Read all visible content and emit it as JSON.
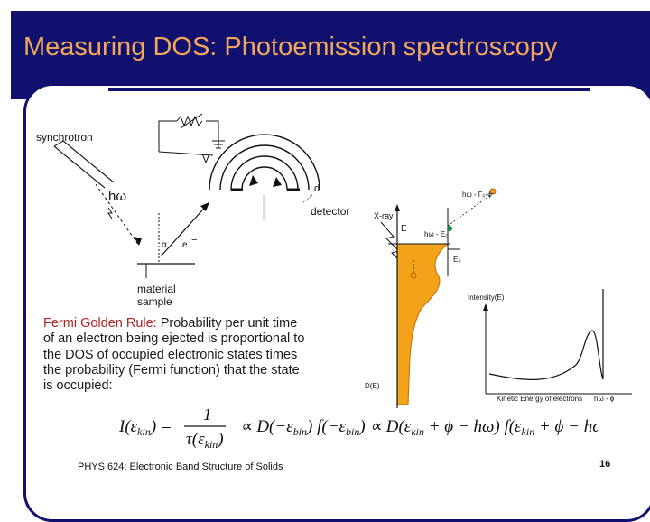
{
  "slide": {
    "title": "Measuring DOS: Photoemission spectroscopy",
    "footer": "PHYS 624: Electronic Band Structure of Solids",
    "page_number": "16"
  },
  "colors": {
    "navy": "#10106e",
    "title": "#f2a65a",
    "fill_orange": "#f5a21b",
    "highlight_red": "#b22222"
  },
  "left_diagram": {
    "synchrotron": "synchrotron",
    "photon": "hω",
    "voltage": "V",
    "d_label": "d",
    "detector": "detector",
    "alpha": "α",
    "electron": "e",
    "minus": "−",
    "sample_line1": "material",
    "sample_line2": "sample"
  },
  "right_diagram": {
    "xray": "X-ray",
    "e_axis": "E",
    "level_top": "hω - Γ₀-ϕ",
    "level_mid": "hω - E₀",
    "eb": "E₀",
    "intensity": "Intensity(E)",
    "dos": "D(E)",
    "kinetic": "Kinetic Energy of electrons",
    "h_phi": "hω - ϕ"
  },
  "text_block": {
    "highlight": "Fermi Golden Rule:",
    "body": " Probability per unit time of an electron being ejected is proportional to the DOS of occupied electronic states times the probability (Fermi function) that the state is occupied:"
  },
  "equation": {
    "lhs": "I(ε",
    "lhs_sub": "kin",
    "lhs_end": ") =",
    "num": "1",
    "den": "τ(ε",
    "den_sub": "kin",
    "den_end": ")",
    "rhs": "∝ D(−ε",
    "rhs2": ") f(−ε",
    "rhs3": ") ∝ D(ε",
    "rhs4": " + ϕ − hω) f(ε",
    "rhs5": " + ϕ − hω)",
    "sub_bin": "bin",
    "sub_kin": "kin"
  }
}
